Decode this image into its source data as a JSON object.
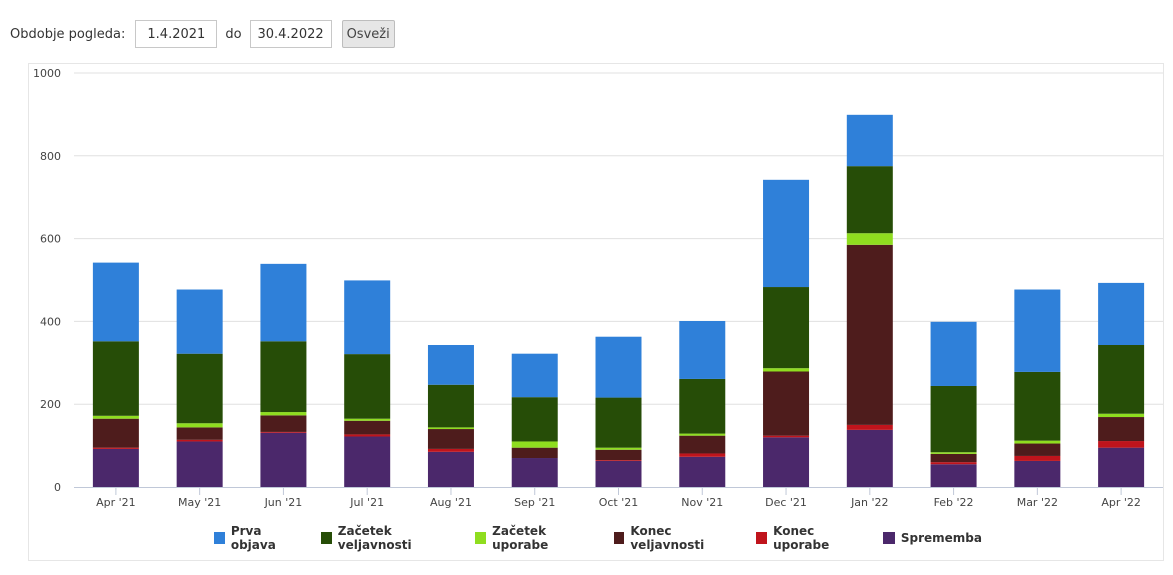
{
  "filter": {
    "label": "Obdobje pogleda:",
    "from_value": "1.4.2021",
    "to_label": "do",
    "to_value": "30.4.2022",
    "refresh_label": "Osveži"
  },
  "chart_data": {
    "type": "bar",
    "stacked": true,
    "categories": [
      "Apr '21",
      "May '21",
      "Jun '21",
      "Jul '21",
      "Aug '21",
      "Sep '21",
      "Oct '21",
      "Nov '21",
      "Dec '21",
      "Jan '22",
      "Feb '22",
      "Mar '22",
      "Apr '22"
    ],
    "series": [
      {
        "name": "Sprememba",
        "color": "#4b286b",
        "values": [
          92,
          110,
          131,
          122,
          85,
          70,
          63,
          73,
          120,
          138,
          55,
          63,
          95
        ]
      },
      {
        "name": "Konec uporabe",
        "color": "#c0141c",
        "values": [
          3,
          4,
          2,
          5,
          7,
          0,
          2,
          8,
          4,
          12,
          5,
          12,
          16
        ]
      },
      {
        "name": "Konec veljavnosti",
        "color": "#4e1c1c",
        "values": [
          70,
          30,
          40,
          33,
          48,
          25,
          25,
          43,
          155,
          435,
          20,
          30,
          58
        ]
      },
      {
        "name": "Začetek uporabe",
        "color": "#8fdd1f",
        "values": [
          7,
          10,
          8,
          5,
          4,
          15,
          5,
          5,
          8,
          28,
          4,
          7,
          8
        ]
      },
      {
        "name": "Začetek veljavnosti",
        "color": "#264d07",
        "values": [
          180,
          168,
          171,
          156,
          103,
          107,
          121,
          132,
          196,
          162,
          160,
          166,
          166
        ]
      },
      {
        "name": "Prva objava",
        "color": "#2f80d9",
        "values": [
          190,
          155,
          187,
          178,
          96,
          105,
          147,
          140,
          259,
          124,
          155,
          199,
          150
        ]
      }
    ],
    "legend_order": [
      "Prva objava",
      "Začetek veljavnosti",
      "Začetek uporabe",
      "Konec veljavnosti",
      "Konec uporabe",
      "Sprememba"
    ],
    "y_ticks": [
      0,
      200,
      400,
      600,
      800,
      1000
    ],
    "ylim": [
      0,
      1000
    ],
    "xlabel": "",
    "ylabel": "",
    "grid": true,
    "legend_position": "bottom-center"
  }
}
